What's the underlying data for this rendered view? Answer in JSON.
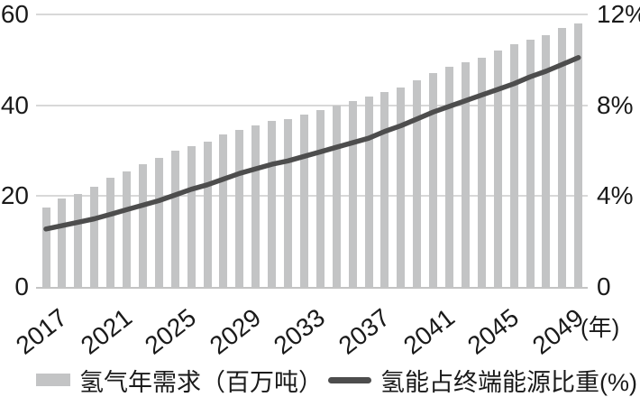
{
  "chart_data": {
    "type": "bar+line combo",
    "x_years": [
      2017,
      2018,
      2019,
      2020,
      2021,
      2022,
      2023,
      2024,
      2025,
      2026,
      2027,
      2028,
      2029,
      2030,
      2031,
      2032,
      2033,
      2034,
      2035,
      2036,
      2037,
      2038,
      2039,
      2040,
      2041,
      2042,
      2043,
      2044,
      2045,
      2046,
      2047,
      2048,
      2049,
      2050
    ],
    "series": [
      {
        "name": "氢气年需求（百万吨）",
        "type": "bar",
        "axis": "left",
        "color": "#c3c4c5",
        "values": [
          17.5,
          19.5,
          20.5,
          22,
          24,
          25.5,
          27,
          28.5,
          30,
          31,
          32,
          33.5,
          34.5,
          35.5,
          36.5,
          37,
          38,
          39,
          40,
          41,
          42,
          43,
          44,
          45.5,
          47,
          48.5,
          49.5,
          50.5,
          52,
          53.5,
          54.5,
          55.5,
          57,
          58
        ]
      },
      {
        "name": "氢能占终端能源比重(%)",
        "type": "line",
        "axis": "right",
        "color": "#4d4d4d",
        "values": [
          2.55,
          2.7,
          2.85,
          3.0,
          3.2,
          3.4,
          3.6,
          3.8,
          4.05,
          4.3,
          4.5,
          4.75,
          5.0,
          5.2,
          5.4,
          5.55,
          5.75,
          5.95,
          6.15,
          6.35,
          6.55,
          6.85,
          7.1,
          7.4,
          7.7,
          7.95,
          8.2,
          8.45,
          8.7,
          8.95,
          9.25,
          9.5,
          9.8,
          10.1
        ]
      }
    ],
    "left_axis": {
      "tick_labels": [
        "60",
        "40",
        "20",
        "0"
      ],
      "tick_values": [
        60,
        40,
        20,
        0
      ],
      "range": [
        0,
        60
      ]
    },
    "right_axis": {
      "tick_labels": [
        "12%",
        "8%",
        "4%",
        "0"
      ],
      "tick_values": [
        12,
        8,
        4,
        0
      ],
      "range": [
        0,
        12
      ]
    },
    "x_tick_labels": [
      "2017",
      "2021",
      "2025",
      "2029",
      "2033",
      "2037",
      "2041",
      "2045",
      "2049"
    ],
    "x_axis_unit": "(年)",
    "title": "",
    "grid": "horizontal gridlines at 20/40/60 (left) = 4%/8%/12% (right)",
    "legend_position": "bottom"
  },
  "legend": {
    "bar_label": "氢气年需求（百万吨）",
    "line_label": "氢能占终端能源比重(%)"
  },
  "colors": {
    "bar": "#c3c4c5",
    "line": "#4d4d4d",
    "gridline": "#d8d8d8",
    "axis_baseline": "#c4c4c4",
    "text": "#1a1a1a",
    "background": "#ffffff"
  }
}
